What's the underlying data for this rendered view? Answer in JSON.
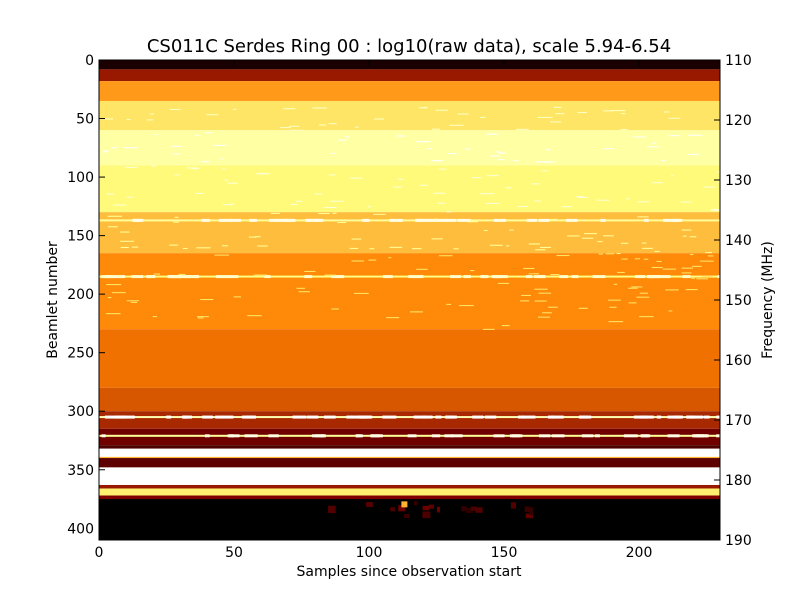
{
  "chart_data": {
    "type": "heatmap",
    "title": "CS011C Serdes Ring 00 : log10(raw data), scale 5.94-6.54",
    "xlabel": "Samples since observation start",
    "ylabel": "Beamlet number",
    "y2label": "Frequency (MHz)",
    "xlim": [
      0,
      230
    ],
    "ylim": [
      410,
      0
    ],
    "y2lim": [
      190,
      110
    ],
    "x_ticks": [
      "0",
      "50",
      "100",
      "150",
      "200"
    ],
    "y_ticks": [
      "0",
      "50",
      "100",
      "150",
      "200",
      "250",
      "300",
      "350",
      "400"
    ],
    "y2_ticks": [
      "110",
      "120",
      "130",
      "140",
      "150",
      "160",
      "170",
      "180",
      "190"
    ],
    "colormap": "afmhot",
    "value_scale": [
      5.94,
      6.54
    ],
    "grid": false,
    "legend": "none",
    "bands": [
      {
        "from": 0,
        "to": 8,
        "level": 0.05
      },
      {
        "from": 8,
        "to": 18,
        "level": 0.3
      },
      {
        "from": 18,
        "to": 35,
        "level": 0.55
      },
      {
        "from": 35,
        "to": 60,
        "level": 0.7
      },
      {
        "from": 60,
        "to": 90,
        "level": 0.82
      },
      {
        "from": 90,
        "to": 130,
        "level": 0.74
      },
      {
        "from": 130,
        "to": 165,
        "level": 0.62
      },
      {
        "from": 165,
        "to": 230,
        "level": 0.52
      },
      {
        "from": 230,
        "to": 280,
        "level": 0.47
      },
      {
        "from": 280,
        "to": 300,
        "level": 0.42
      },
      {
        "from": 300,
        "to": 315,
        "level": 0.33
      },
      {
        "from": 315,
        "to": 329,
        "level": 0.22
      },
      {
        "from": 329,
        "to": 332,
        "level": 0.15
      },
      {
        "from": 332,
        "to": 339,
        "level": 1.0
      },
      {
        "from": 339,
        "to": 340,
        "level": 0.6
      },
      {
        "from": 340,
        "to": 348,
        "level": 0.18
      },
      {
        "from": 348,
        "to": 363,
        "level": 1.0
      },
      {
        "from": 363,
        "to": 366,
        "level": 0.3
      },
      {
        "from": 366,
        "to": 372,
        "level": 0.72
      },
      {
        "from": 372,
        "to": 375,
        "level": 0.25
      },
      {
        "from": 375,
        "to": 410,
        "level": 0.0
      }
    ],
    "bright_rows": [
      {
        "beamlet": 137,
        "level": 0.95
      },
      {
        "beamlet": 185,
        "level": 0.9
      },
      {
        "beamlet": 305,
        "level": 1.0
      },
      {
        "beamlet": 321,
        "level": 0.95
      }
    ]
  }
}
